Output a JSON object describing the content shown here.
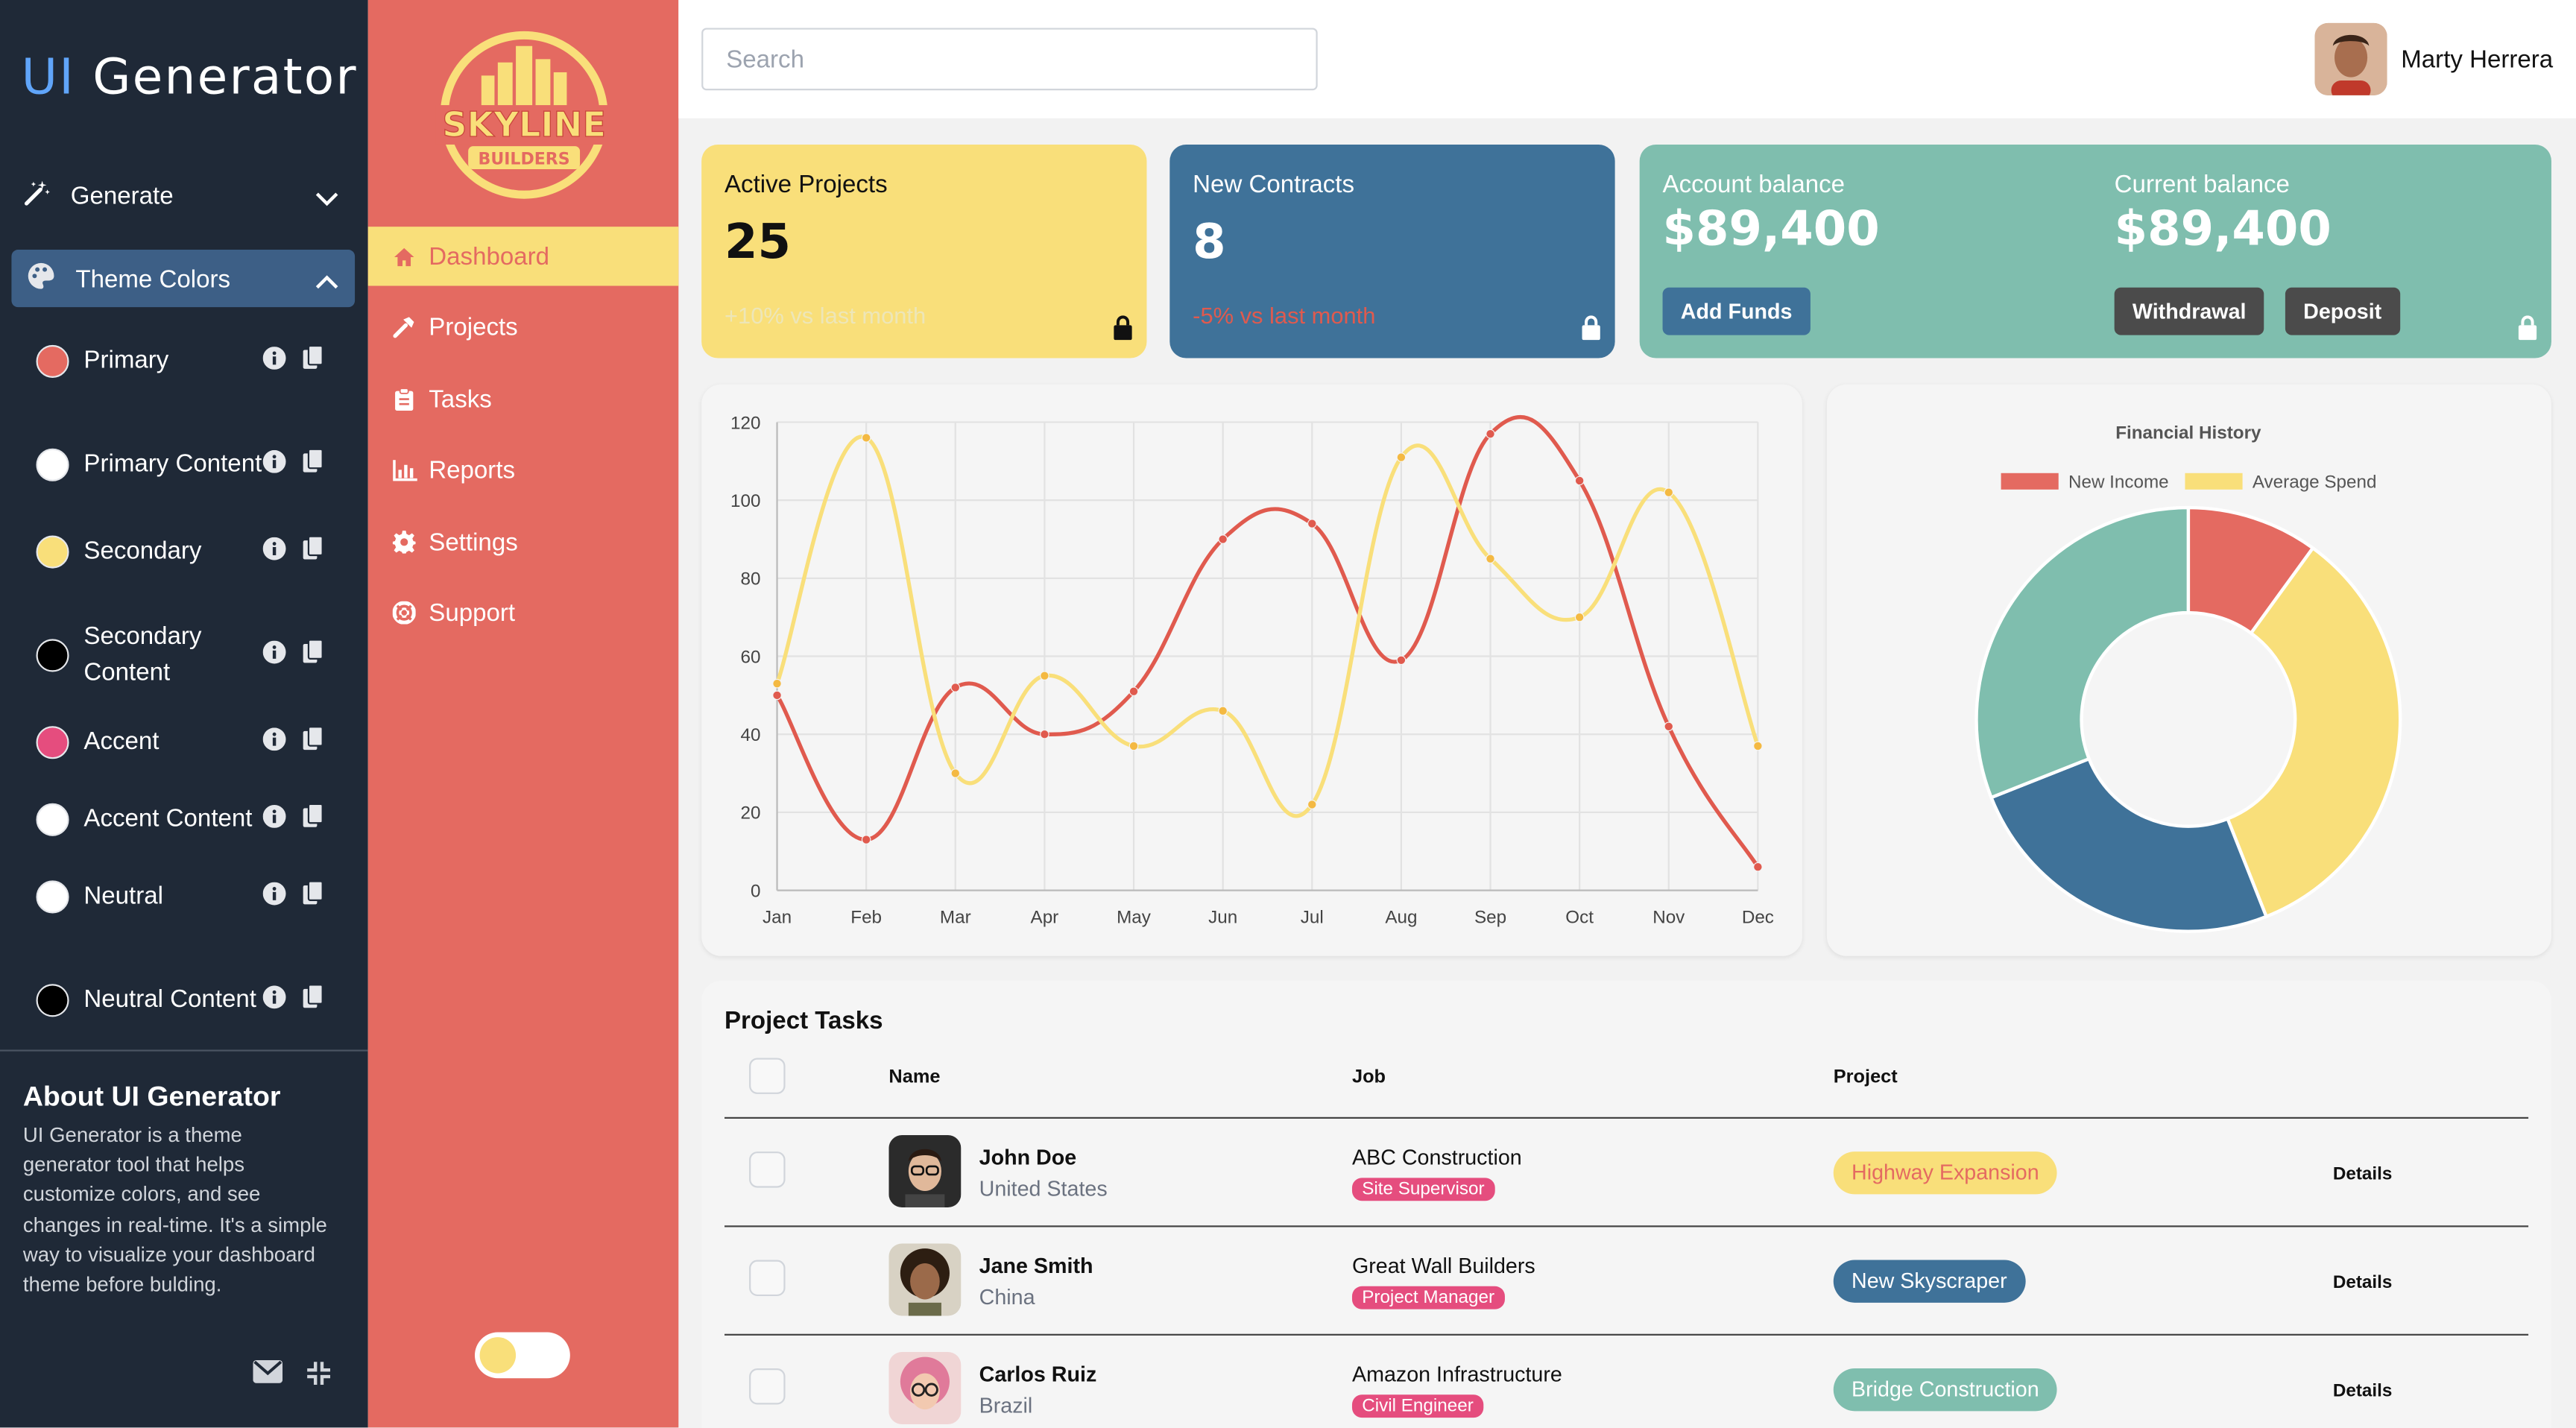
{
  "generator": {
    "title_ui": "UI",
    "title_rest": " Generator",
    "generate_label": "Generate",
    "theme_colors_label": "Theme Colors",
    "colors": [
      {
        "label": "Primary",
        "color": "#e46a61"
      },
      {
        "label": "Primary Content",
        "color": "#ffffff"
      },
      {
        "label": "Secondary",
        "color": "#f9df7a"
      },
      {
        "label": "Secondary Content",
        "color": "#000000"
      },
      {
        "label": "Accent",
        "color": "#e54d7e"
      },
      {
        "label": "Accent Content",
        "color": "#ffffff"
      },
      {
        "label": "Neutral",
        "color": "#ffffff"
      },
      {
        "label": "Neutral Content",
        "color": "#000000"
      }
    ],
    "about_title": "About UI Generator",
    "about_text": "UI Generator is a theme generator tool that helps customize colors, and see changes in real-time. It's a simple way to visualize your dashboard theme before bulding."
  },
  "brand": {
    "line1": "SKYLINE",
    "line2": "BUILDERS"
  },
  "nav": {
    "items": [
      {
        "label": "Dashboard",
        "icon": "home-icon"
      },
      {
        "label": "Projects",
        "icon": "hammer-icon"
      },
      {
        "label": "Tasks",
        "icon": "clipboard-icon"
      },
      {
        "label": "Reports",
        "icon": "bar-chart-icon"
      },
      {
        "label": "Settings",
        "icon": "gear-icon"
      },
      {
        "label": "Support",
        "icon": "lifebuoy-icon"
      }
    ]
  },
  "header": {
    "search_placeholder": "Search",
    "user_name": "Marty Herrera"
  },
  "stats": {
    "active_projects": {
      "title": "Active Projects",
      "value": "25",
      "delta": "+10% vs last month"
    },
    "new_contracts": {
      "title": "New Contracts",
      "value": "8",
      "delta": "-5% vs last month"
    },
    "account_balance": {
      "title": "Account balance",
      "value": "$89,400",
      "button": "Add Funds"
    },
    "current_balance": {
      "title": "Current balance",
      "value": "$89,400",
      "withdraw": "Withdrawal",
      "deposit": "Deposit"
    }
  },
  "chart_data": [
    {
      "type": "line",
      "categories": [
        "Jan",
        "Feb",
        "Mar",
        "Apr",
        "May",
        "Jun",
        "Jul",
        "Aug",
        "Sep",
        "Oct",
        "Nov",
        "Dec"
      ],
      "ylim": [
        0,
        120
      ],
      "yticks": [
        0,
        20,
        40,
        60,
        80,
        100,
        120
      ],
      "series": [
        {
          "name": "Red",
          "color": "#e05a4e",
          "values": [
            50,
            13,
            52,
            40,
            51,
            90,
            94,
            59,
            117,
            105,
            42,
            6
          ]
        },
        {
          "name": "Yellow",
          "color": "#f9df7a",
          "values": [
            53,
            116,
            30,
            55,
            37,
            46,
            22,
            111,
            85,
            70,
            102,
            37
          ]
        }
      ]
    },
    {
      "type": "pie",
      "title": "Financial History",
      "legend": [
        {
          "name": "New Income",
          "color": "#e46a61"
        },
        {
          "name": "Average Spend",
          "color": "#f9df7a"
        }
      ],
      "slices": [
        {
          "value": 10,
          "color": "#e46a61"
        },
        {
          "value": 34,
          "color": "#f9df7a"
        },
        {
          "value": 25,
          "color": "#3f7299"
        },
        {
          "value": 31,
          "color": "#7fbeae"
        }
      ]
    }
  ],
  "tasks": {
    "title": "Project Tasks",
    "headers": {
      "name": "Name",
      "job": "Job",
      "project": "Project"
    },
    "rows": [
      {
        "name": "John Doe",
        "country": "United States",
        "job": "ABC Construction",
        "role": "Site Supervisor",
        "project": "Highway Expansion",
        "details": "Details",
        "proj_bg": "#f9df7a",
        "proj_fg": "#e46a61"
      },
      {
        "name": "Jane Smith",
        "country": "China",
        "job": "Great Wall Builders",
        "role": "Project Manager",
        "project": "New Skyscraper",
        "details": "Details",
        "proj_bg": "#3f7299",
        "proj_fg": "#ffffff"
      },
      {
        "name": "Carlos Ruiz",
        "country": "Brazil",
        "job": "Amazon Infrastructure",
        "role": "Civil Engineer",
        "project": "Bridge Construction",
        "details": "Details",
        "proj_bg": "#7fbeae",
        "proj_fg": "#ffffff"
      }
    ]
  }
}
